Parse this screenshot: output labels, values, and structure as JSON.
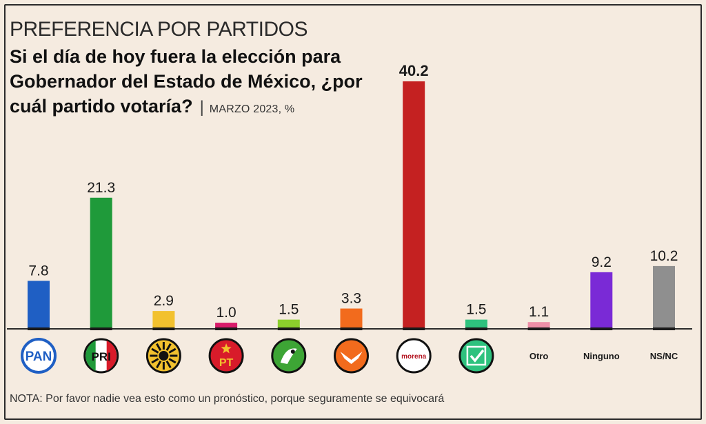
{
  "header": {
    "kicker": "PREFERENCIA POR PARTIDOS",
    "question": "Si el día de hoy fuera la elección para Gobernador del Estado de México, ¿por cuál partido votaría?",
    "separator": "|",
    "date_unit": "MARZO 2023, %"
  },
  "note": "NOTA: Por favor nadie vea esto como un pronóstico, porque seguramente se equivocará",
  "chart_data": {
    "type": "bar",
    "title": "Si el día de hoy fuera la elección para Gobernador del Estado de México, ¿por cuál partido votaría?",
    "subtitle": "MARZO 2023, %",
    "categories": [
      "PAN",
      "PRI",
      "PRD",
      "PT",
      "PVEM",
      "MC",
      "morena",
      "NA",
      "Otro",
      "Ninguno",
      "NS/NC"
    ],
    "values": [
      7.8,
      21.3,
      2.9,
      1.0,
      1.5,
      3.3,
      40.2,
      1.5,
      1.1,
      9.2,
      10.2
    ],
    "value_labels": [
      "7.8",
      "21.3",
      "2.9",
      "1.0",
      "1.5",
      "3.3",
      "40.2",
      "1.5",
      "1.1",
      "9.2",
      "10.2"
    ],
    "colors": [
      "#1f5fc4",
      "#1f9a3a",
      "#f2c12e",
      "#d81b6a",
      "#8ccf2c",
      "#f26b1d",
      "#c42121",
      "#2ec27e",
      "#ee8fa8",
      "#7a2ad6",
      "#8f8f8f"
    ],
    "text_labels": [
      "",
      "",
      "",
      "",
      "",
      "",
      "",
      "",
      "Otro",
      "Ninguno",
      "NS/NC"
    ],
    "logos": [
      {
        "kind": "pan",
        "text": "PAN",
        "icon": "pan-logo"
      },
      {
        "kind": "pri",
        "text": "PRI",
        "icon": "pri-logo"
      },
      {
        "kind": "prd",
        "text": "",
        "icon": "prd-sun-logo"
      },
      {
        "kind": "pt",
        "text": "PT",
        "icon": "pt-star-logo"
      },
      {
        "kind": "pvem",
        "text": "",
        "icon": "pvem-toucan-logo"
      },
      {
        "kind": "mc",
        "text": "",
        "icon": "mc-eagle-logo"
      },
      {
        "kind": "morena",
        "text": "morena",
        "icon": "morena-logo"
      },
      {
        "kind": "na",
        "text": "",
        "icon": "na-check-logo"
      },
      {
        "kind": "text",
        "text": "",
        "icon": ""
      },
      {
        "kind": "text",
        "text": "",
        "icon": ""
      },
      {
        "kind": "text",
        "text": "",
        "icon": ""
      }
    ],
    "ylim": [
      0,
      40.2
    ],
    "grid": false,
    "legend": "none"
  }
}
